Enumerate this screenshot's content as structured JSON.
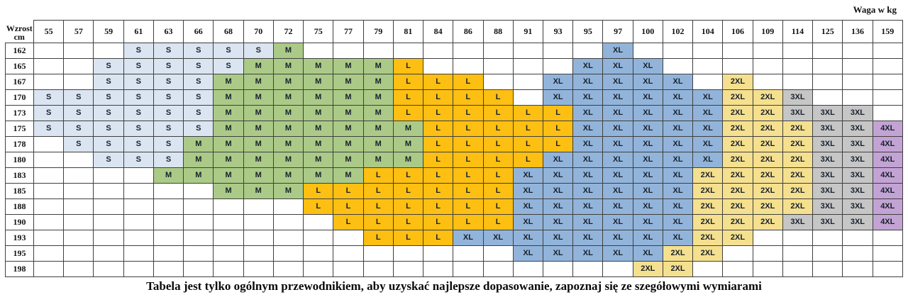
{
  "labels": {
    "height_line1": "Wzrost",
    "height_line2": "cm",
    "weight_axis": "Waga w kg"
  },
  "caption": "Tabela jest tylko ogólnym przewodnikiem, aby uzyskać najlepsze dopasowanie, zapoznaj się ze szegółowymi wymiarami",
  "size_colors": {
    "S": "#dbe5f1",
    "M": "#abca87",
    "L": "#fcbf12",
    "XL": "#92b4da",
    "2XL": "#f5e08f",
    "3XL": "#c6c6c6",
    "4XL": "#c3a3d4"
  },
  "chart_data": {
    "type": "table",
    "title": "Size chart by height (cm) and weight (kg)",
    "xlabel": "Waga w kg",
    "ylabel": "Wzrost cm",
    "weights_kg": [
      55,
      57,
      59,
      61,
      63,
      66,
      68,
      70,
      72,
      75,
      77,
      79,
      81,
      84,
      86,
      88,
      91,
      93,
      95,
      97,
      100,
      102,
      104,
      106,
      109,
      114,
      125,
      136,
      159
    ],
    "heights_cm": [
      162,
      165,
      167,
      170,
      173,
      175,
      178,
      180,
      183,
      185,
      188,
      190,
      193,
      195,
      198
    ],
    "cells": [
      [
        "",
        "",
        "",
        "S",
        "S",
        "S",
        "S",
        "S",
        "M",
        "",
        "",
        "",
        "",
        "",
        "",
        "",
        "",
        "",
        "",
        "XL",
        "",
        "",
        "",
        "",
        "",
        "",
        "",
        "",
        ""
      ],
      [
        "",
        "",
        "S",
        "S",
        "S",
        "S",
        "S",
        "M",
        "M",
        "M",
        "M",
        "M",
        "L",
        "",
        "",
        "",
        "",
        "",
        "XL",
        "XL",
        "XL",
        "",
        "",
        "",
        "",
        "",
        "",
        "",
        ""
      ],
      [
        "",
        "",
        "S",
        "S",
        "S",
        "S",
        "M",
        "M",
        "M",
        "M",
        "M",
        "M",
        "L",
        "L",
        "L",
        "",
        "",
        "XL",
        "XL",
        "XL",
        "XL",
        "XL",
        "",
        "2XL",
        "",
        "",
        "",
        "",
        ""
      ],
      [
        "S",
        "S",
        "S",
        "S",
        "S",
        "S",
        "M",
        "M",
        "M",
        "M",
        "M",
        "M",
        "L",
        "L",
        "L",
        "L",
        "",
        "XL",
        "XL",
        "XL",
        "XL",
        "XL",
        "XL",
        "2XL",
        "2XL",
        "3XL",
        "",
        "",
        ""
      ],
      [
        "S",
        "S",
        "S",
        "S",
        "S",
        "S",
        "M",
        "M",
        "M",
        "M",
        "M",
        "M",
        "L",
        "L",
        "L",
        "L",
        "L",
        "L",
        "XL",
        "XL",
        "XL",
        "XL",
        "XL",
        "2XL",
        "2XL",
        "3XL",
        "3XL",
        "3XL",
        ""
      ],
      [
        "S",
        "S",
        "S",
        "S",
        "S",
        "S",
        "M",
        "M",
        "M",
        "M",
        "M",
        "M",
        "M",
        "L",
        "L",
        "L",
        "L",
        "L",
        "XL",
        "XL",
        "XL",
        "XL",
        "XL",
        "2XL",
        "2XL",
        "2XL",
        "3XL",
        "3XL",
        "4XL"
      ],
      [
        "",
        "S",
        "S",
        "S",
        "S",
        "M",
        "M",
        "M",
        "M",
        "M",
        "M",
        "M",
        "M",
        "L",
        "L",
        "L",
        "L",
        "L",
        "XL",
        "XL",
        "XL",
        "XL",
        "XL",
        "2XL",
        "2XL",
        "2XL",
        "3XL",
        "3XL",
        "4XL"
      ],
      [
        "",
        "",
        "S",
        "S",
        "S",
        "M",
        "M",
        "M",
        "M",
        "M",
        "M",
        "M",
        "M",
        "L",
        "L",
        "L",
        "L",
        "XL",
        "XL",
        "XL",
        "XL",
        "XL",
        "XL",
        "2XL",
        "2XL",
        "2XL",
        "3XL",
        "3XL",
        "4XL"
      ],
      [
        "",
        "",
        "",
        "",
        "M",
        "M",
        "M",
        "M",
        "M",
        "M",
        "M",
        "L",
        "L",
        "L",
        "L",
        "L",
        "XL",
        "XL",
        "XL",
        "XL",
        "XL",
        "XL",
        "2XL",
        "2XL",
        "2XL",
        "2XL",
        "3XL",
        "3XL",
        "4XL"
      ],
      [
        "",
        "",
        "",
        "",
        "",
        "",
        "M",
        "M",
        "M",
        "L",
        "L",
        "L",
        "L",
        "L",
        "L",
        "L",
        "XL",
        "XL",
        "XL",
        "XL",
        "XL",
        "XL",
        "2XL",
        "2XL",
        "2XL",
        "2XL",
        "3XL",
        "3XL",
        "4XL"
      ],
      [
        "",
        "",
        "",
        "",
        "",
        "",
        "",
        "",
        "",
        "L",
        "L",
        "L",
        "L",
        "L",
        "L",
        "L",
        "XL",
        "XL",
        "XL",
        "XL",
        "XL",
        "XL",
        "2XL",
        "2XL",
        "2XL",
        "2XL",
        "3XL",
        "3XL",
        "4XL"
      ],
      [
        "",
        "",
        "",
        "",
        "",
        "",
        "",
        "",
        "",
        "",
        "L",
        "L",
        "L",
        "L",
        "L",
        "L",
        "XL",
        "XL",
        "XL",
        "XL",
        "XL",
        "XL",
        "2XL",
        "2XL",
        "2XL",
        "3XL",
        "3XL",
        "3XL",
        "4XL"
      ],
      [
        "",
        "",
        "",
        "",
        "",
        "",
        "",
        "",
        "",
        "",
        "",
        "L",
        "L",
        "L",
        "XL",
        "XL",
        "XL",
        "XL",
        "XL",
        "XL",
        "XL",
        "XL",
        "2XL",
        "2XL",
        "",
        "",
        "",
        "",
        ""
      ],
      [
        "",
        "",
        "",
        "",
        "",
        "",
        "",
        "",
        "",
        "",
        "",
        "",
        "",
        "",
        "",
        "",
        "XL",
        "XL",
        "XL",
        "XL",
        "XL",
        "2XL",
        "2XL",
        "",
        "",
        "",
        "",
        "",
        ""
      ],
      [
        "",
        "",
        "",
        "",
        "",
        "",
        "",
        "",
        "",
        "",
        "",
        "",
        "",
        "",
        "",
        "",
        "",
        "",
        "",
        "",
        "2XL",
        "2XL",
        "",
        "",
        "",
        "",
        "",
        "",
        ""
      ]
    ]
  }
}
